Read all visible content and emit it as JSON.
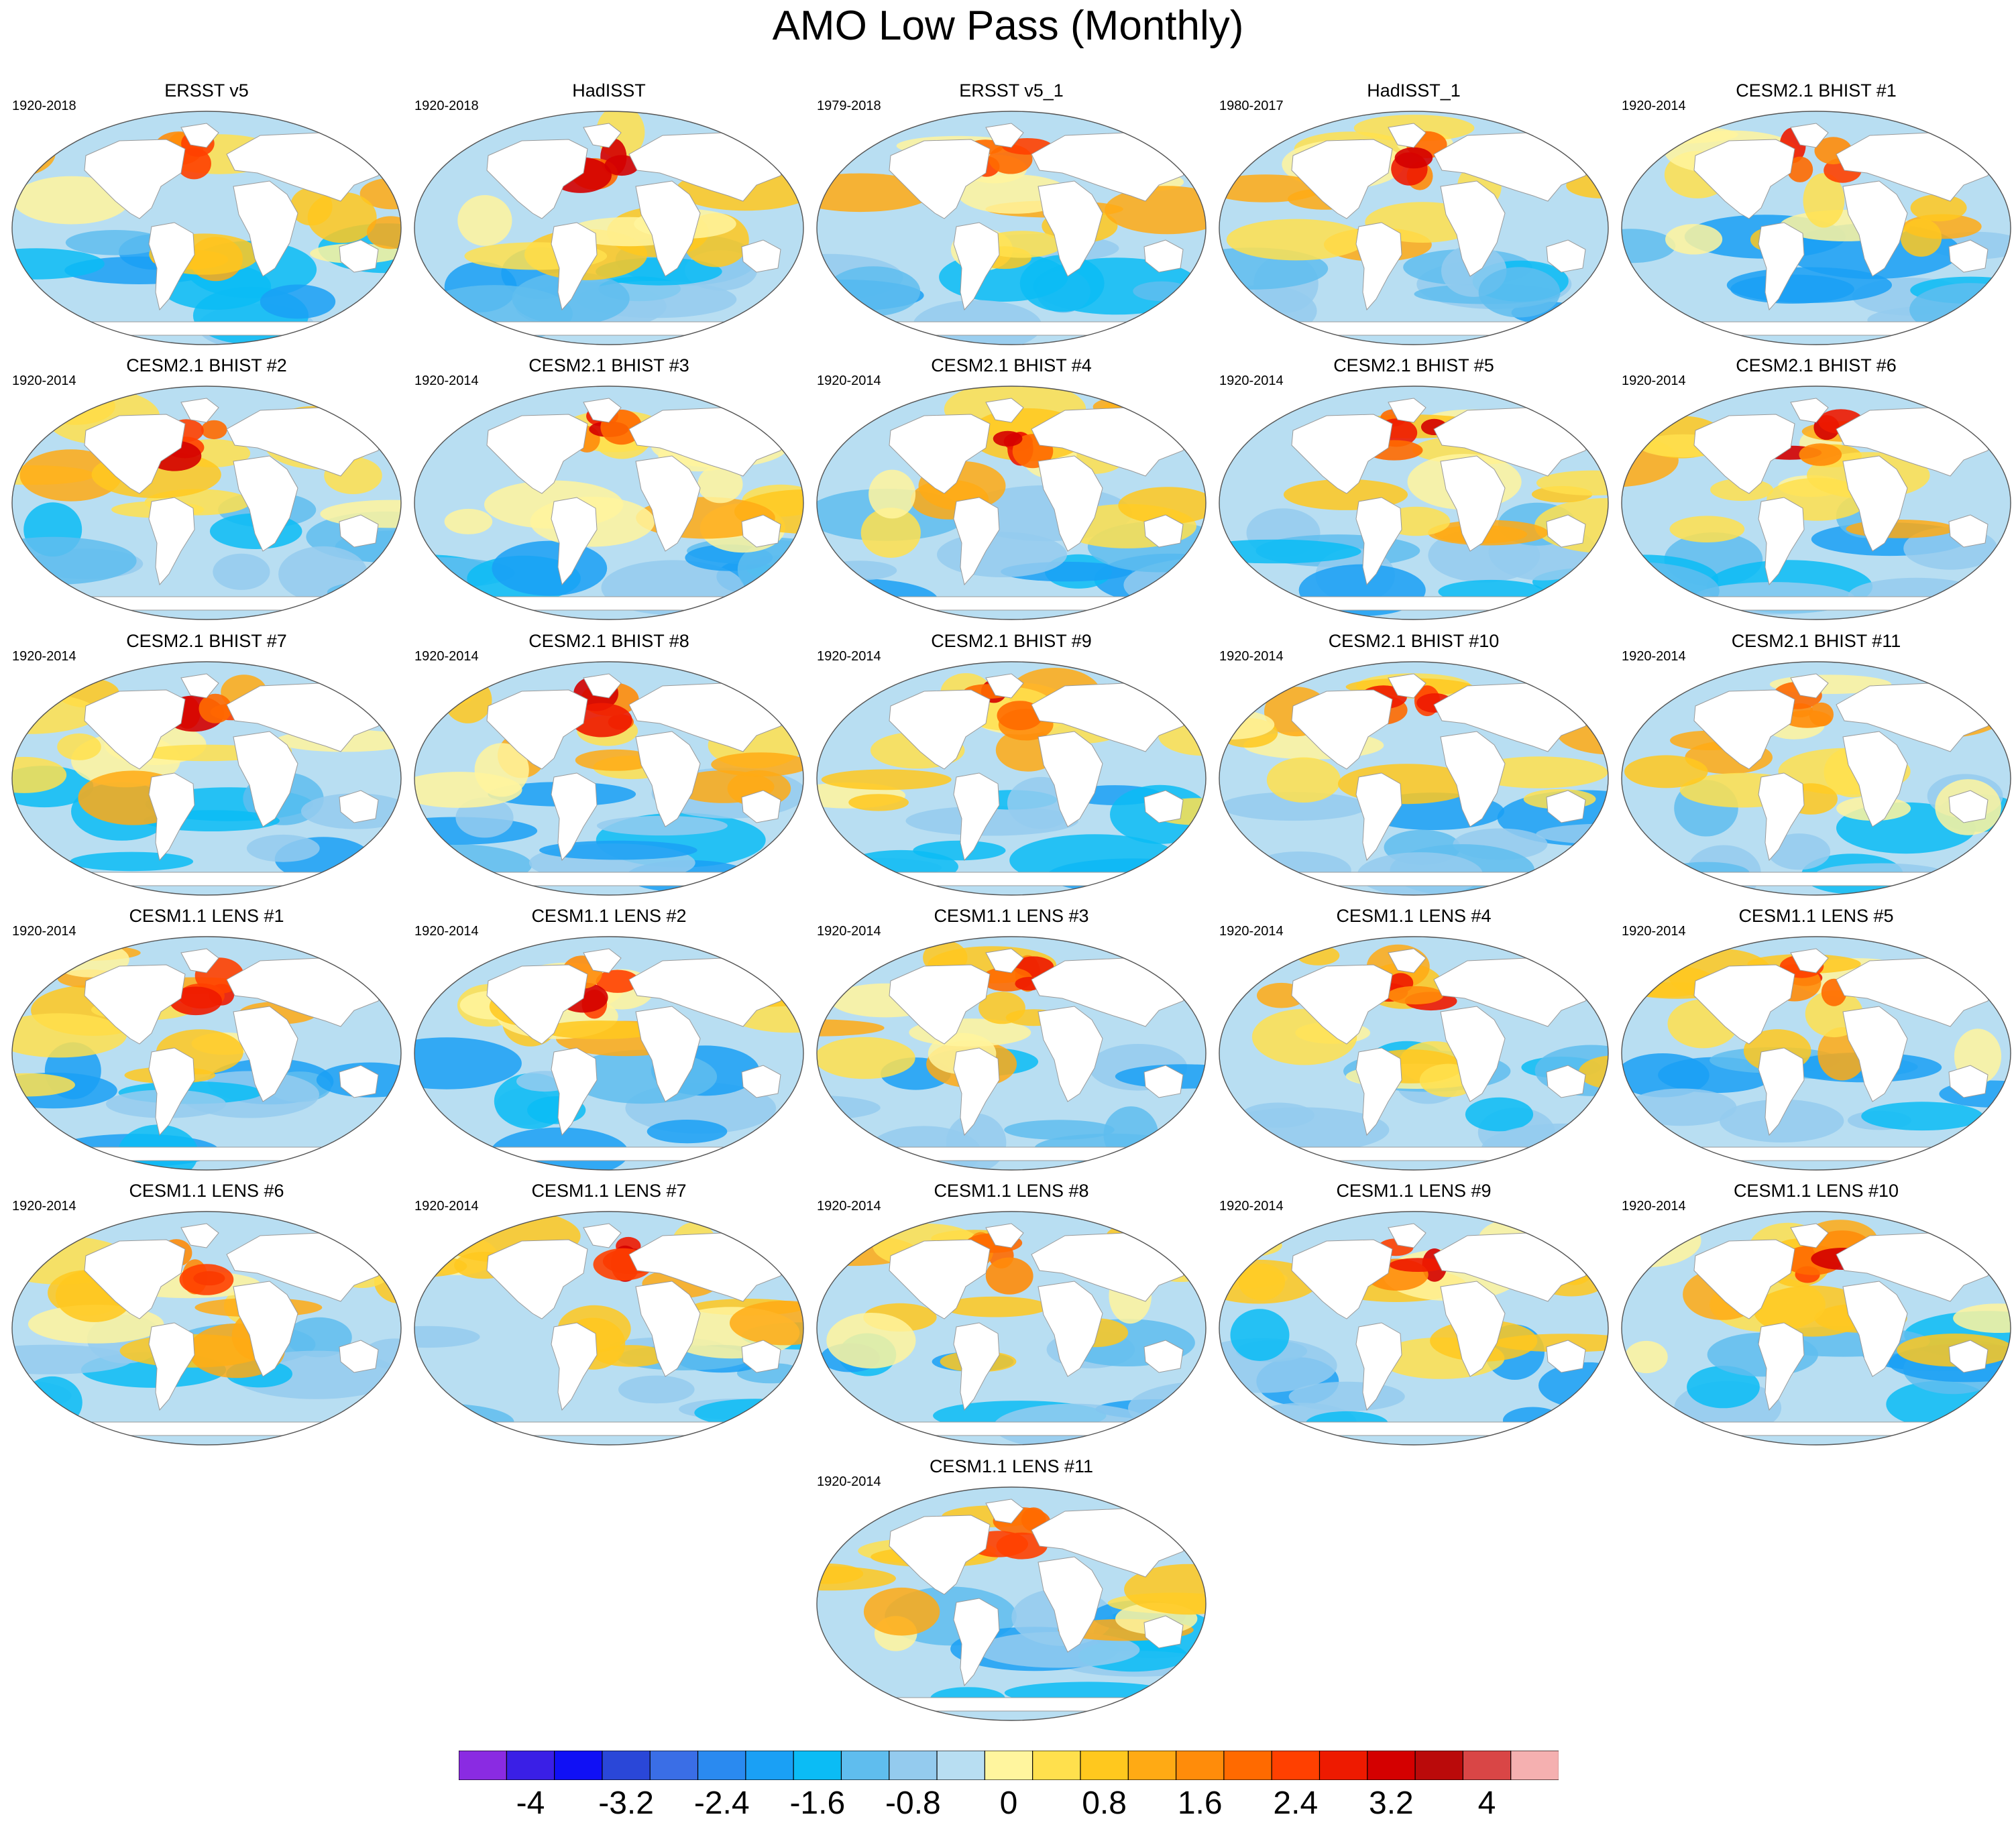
{
  "figure_title": "AMO Low Pass (Monthly)",
  "chart_data": {
    "type": "heatmap",
    "description_of_fields": "global sea surface temperature regression maps",
    "projection": "Robinson",
    "panels": [
      {
        "title": "ERSST v5",
        "period": "1920-2018"
      },
      {
        "title": "HadISST",
        "period": "1920-2018"
      },
      {
        "title": "ERSST v5_1",
        "period": "1979-2018"
      },
      {
        "title": "HadISST_1",
        "period": "1980-2017"
      },
      {
        "title": "CESM2.1 BHIST #1",
        "period": "1920-2014"
      },
      {
        "title": "CESM2.1 BHIST #2",
        "period": "1920-2014"
      },
      {
        "title": "CESM2.1 BHIST #3",
        "period": "1920-2014"
      },
      {
        "title": "CESM2.1 BHIST #4",
        "period": "1920-2014"
      },
      {
        "title": "CESM2.1 BHIST #5",
        "period": "1920-2014"
      },
      {
        "title": "CESM2.1 BHIST #6",
        "period": "1920-2014"
      },
      {
        "title": "CESM2.1 BHIST #7",
        "period": "1920-2014"
      },
      {
        "title": "CESM2.1 BHIST #8",
        "period": "1920-2014"
      },
      {
        "title": "CESM2.1 BHIST #9",
        "period": "1920-2014"
      },
      {
        "title": "CESM2.1 BHIST #10",
        "period": "1920-2014"
      },
      {
        "title": "CESM2.1 BHIST #11",
        "period": "1920-2014"
      },
      {
        "title": "CESM1.1 LENS #1",
        "period": "1920-2014"
      },
      {
        "title": "CESM1.1 LENS #2",
        "period": "1920-2014"
      },
      {
        "title": "CESM1.1 LENS #3",
        "period": "1920-2014"
      },
      {
        "title": "CESM1.1 LENS #4",
        "period": "1920-2014"
      },
      {
        "title": "CESM1.1 LENS #5",
        "period": "1920-2014"
      },
      {
        "title": "CESM1.1 LENS #6",
        "period": "1920-2014"
      },
      {
        "title": "CESM1.1 LENS #7",
        "period": "1920-2014"
      },
      {
        "title": "CESM1.1 LENS #8",
        "period": "1920-2014"
      },
      {
        "title": "CESM1.1 LENS #9",
        "period": "1920-2014"
      },
      {
        "title": "CESM1.1 LENS #10",
        "period": "1920-2014"
      },
      {
        "title": "CESM1.1 LENS #11",
        "period": "1920-2014"
      }
    ],
    "colorbar": {
      "levels": [
        -4.4,
        -4,
        -3.6,
        -3.2,
        -2.8,
        -2.4,
        -2,
        -1.6,
        -1.2,
        -0.8,
        -0.4,
        0,
        0.4,
        0.8,
        1.2,
        1.6,
        2,
        2.4,
        2.8,
        3.2,
        3.6,
        4,
        4.4
      ],
      "colors": [
        "#8a2be2",
        "#3a1fe6",
        "#1010f5",
        "#2a47d8",
        "#3a6ee6",
        "#2a8af0",
        "#1aa0f5",
        "#0bbcf5",
        "#5fbdee",
        "#94cbee",
        "#b8def2",
        "#fff59e",
        "#ffe04d",
        "#ffc81e",
        "#ffaa14",
        "#ff8c0a",
        "#ff6a00",
        "#ff4000",
        "#ee1a00",
        "#d40000",
        "#ba0a0a",
        "#d94646",
        "#f5b0b0"
      ],
      "tick_labels": [
        "-4",
        "-3.2",
        "-2.4",
        "-1.6",
        "-0.8",
        "0",
        "0.8",
        "1.6",
        "2.4",
        "3.2",
        "4"
      ],
      "tick_values": [
        -4,
        -3.2,
        -2.4,
        -1.6,
        -0.8,
        0,
        0.8,
        1.6,
        2.4,
        3.2,
        4
      ]
    }
  }
}
